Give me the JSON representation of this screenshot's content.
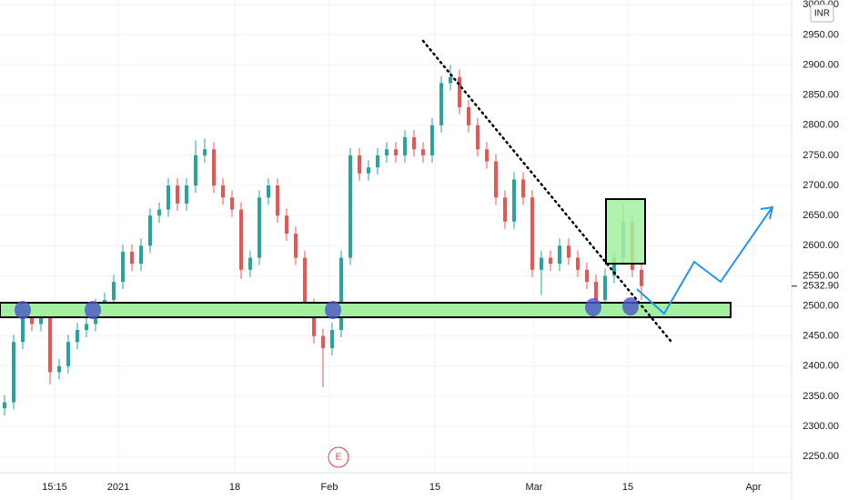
{
  "chart_data": {
    "type": "candlestick",
    "currency": "INR",
    "earnings_marker": "E",
    "last_price": {
      "value": 2532.9,
      "label": "2532.90"
    },
    "up_color": "#26a69a",
    "down_color": "#ef5350",
    "grid": true,
    "x": [
      0,
      1,
      2,
      3,
      4,
      5,
      6,
      7,
      8,
      9,
      10,
      11,
      12,
      13,
      14,
      15,
      16,
      17,
      18,
      19,
      20,
      21,
      22,
      23,
      24,
      25,
      26,
      27,
      28,
      29,
      30,
      31,
      32,
      33,
      34,
      35,
      36,
      37,
      38,
      39,
      40,
      41,
      42,
      43,
      44,
      45,
      46,
      47,
      48,
      49,
      50,
      51,
      52,
      53,
      54,
      55,
      56,
      57,
      58,
      59,
      60,
      61,
      62,
      63,
      64,
      65,
      66,
      67,
      68,
      69,
      70
    ],
    "open": [
      2330,
      2340,
      2440,
      2490,
      2470,
      2480,
      2390,
      2400,
      2440,
      2460,
      2470,
      2500,
      2510,
      2540,
      2590,
      2570,
      2600,
      2650,
      2660,
      2700,
      2670,
      2700,
      2750,
      2760,
      2700,
      2680,
      2660,
      2560,
      2580,
      2680,
      2700,
      2650,
      2620,
      2580,
      2500,
      2450,
      2430,
      2460,
      2580,
      2750,
      2720,
      2730,
      2750,
      2760,
      2750,
      2780,
      2760,
      2750,
      2800,
      2870,
      2880,
      2830,
      2800,
      2760,
      2740,
      2680,
      2640,
      2710,
      2680,
      2560,
      2580,
      2570,
      2600,
      2580,
      2560,
      2540,
      2510,
      2550,
      2580,
      2640,
      2560
    ],
    "high": [
      2352,
      2452,
      2502,
      2502,
      2492,
      2492,
      2412,
      2452,
      2472,
      2482,
      2512,
      2522,
      2552,
      2602,
      2602,
      2612,
      2662,
      2672,
      2712,
      2712,
      2712,
      2775,
      2778,
      2772,
      2712,
      2692,
      2672,
      2592,
      2692,
      2712,
      2712,
      2662,
      2632,
      2592,
      2512,
      2462,
      2472,
      2592,
      2762,
      2762,
      2742,
      2762,
      2772,
      2772,
      2792,
      2792,
      2772,
      2812,
      2882,
      2900,
      2892,
      2842,
      2812,
      2772,
      2752,
      2692,
      2722,
      2722,
      2692,
      2592,
      2592,
      2612,
      2612,
      2592,
      2572,
      2552,
      2562,
      2592,
      2670,
      2652,
      2572
    ],
    "low": [
      2318,
      2328,
      2428,
      2458,
      2458,
      2370,
      2378,
      2388,
      2428,
      2448,
      2458,
      2488,
      2498,
      2528,
      2558,
      2558,
      2588,
      2638,
      2648,
      2658,
      2658,
      2688,
      2738,
      2688,
      2668,
      2648,
      2545,
      2548,
      2568,
      2668,
      2638,
      2608,
      2568,
      2488,
      2438,
      2365,
      2418,
      2448,
      2568,
      2708,
      2708,
      2718,
      2738,
      2738,
      2738,
      2748,
      2738,
      2738,
      2788,
      2858,
      2818,
      2788,
      2748,
      2728,
      2668,
      2628,
      2628,
      2668,
      2548,
      2518,
      2558,
      2558,
      2568,
      2548,
      2528,
      2498,
      2498,
      2538,
      2568,
      2548,
      2510
    ],
    "close": [
      2340,
      2440,
      2490,
      2470,
      2480,
      2390,
      2400,
      2440,
      2460,
      2470,
      2500,
      2510,
      2540,
      2590,
      2570,
      2600,
      2650,
      2660,
      2700,
      2670,
      2700,
      2750,
      2760,
      2700,
      2680,
      2660,
      2560,
      2580,
      2680,
      2700,
      2650,
      2620,
      2580,
      2500,
      2450,
      2430,
      2460,
      2580,
      2750,
      2720,
      2730,
      2750,
      2760,
      2750,
      2780,
      2760,
      2750,
      2800,
      2870,
      2880,
      2830,
      2800,
      2760,
      2740,
      2680,
      2640,
      2710,
      2680,
      2560,
      2580,
      2570,
      2600,
      2580,
      2560,
      2540,
      2510,
      2550,
      2580,
      2640,
      2560,
      2533
    ],
    "xlim": [
      -0.5,
      86.5
    ],
    "ylim": [
      2223,
      3008
    ],
    "xticks": [
      {
        "value": 5.5,
        "label": "15:15"
      },
      {
        "value": 12.5,
        "label": "2021"
      },
      {
        "value": 25.3,
        "label": "18"
      },
      {
        "value": 35.7,
        "label": "Feb"
      },
      {
        "value": 47.3,
        "label": "15"
      },
      {
        "value": 58.2,
        "label": "Mar"
      },
      {
        "value": 68.5,
        "label": "15"
      },
      {
        "value": 82.3,
        "label": "Apr"
      }
    ],
    "yticks": [
      {
        "value": 2250,
        "label": "2250.00"
      },
      {
        "value": 2300,
        "label": "2300.00"
      },
      {
        "value": 2350,
        "label": "2350.00"
      },
      {
        "value": 2400,
        "label": "2400.00"
      },
      {
        "value": 2450,
        "label": "2450.00"
      },
      {
        "value": 2500,
        "label": "2500.00"
      },
      {
        "value": 2550,
        "label": "2550.00"
      },
      {
        "value": 2600,
        "label": "2600.00"
      },
      {
        "value": 2650,
        "label": "2650.00"
      },
      {
        "value": 2700,
        "label": "2700.00"
      },
      {
        "value": 2750,
        "label": "2750.00"
      },
      {
        "value": 2800,
        "label": "2800.00"
      },
      {
        "value": 2850,
        "label": "2850.00"
      },
      {
        "value": 2900,
        "label": "2900.00"
      },
      {
        "value": 2950,
        "label": "2950.00"
      },
      {
        "value": 3000,
        "label": "3000.00"
      }
    ]
  }
}
